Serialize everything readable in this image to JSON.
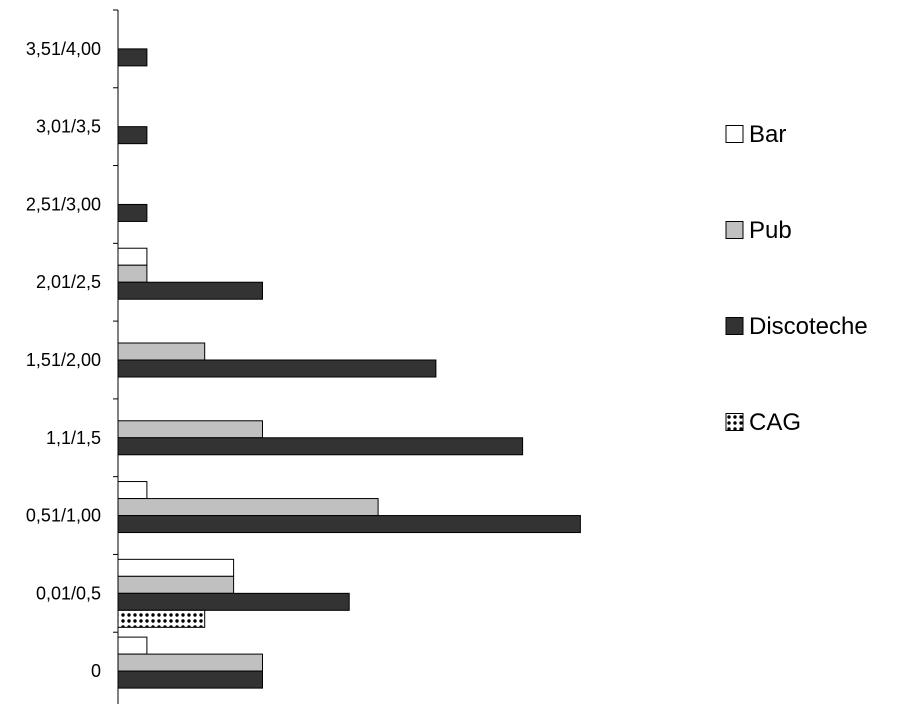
{
  "chart_data": {
    "type": "bar",
    "orientation": "horizontal",
    "categories": [
      "0",
      "0,01/0,5",
      "0,51/1,00",
      "1,1/1,5",
      "1,51/2,00",
      "2,01/2,5",
      "2,51/3,00",
      "3,01/3,5",
      "3,51/4,00"
    ],
    "series": [
      {
        "name": "Bar",
        "values": [
          1,
          4,
          1,
          0,
          0,
          1,
          0,
          0,
          0
        ],
        "color": "#ffffff",
        "pattern": "none"
      },
      {
        "name": "Pub",
        "values": [
          5,
          4,
          9,
          5,
          3,
          1,
          0,
          0,
          0
        ],
        "color": "#c0c0c0",
        "pattern": "none"
      },
      {
        "name": "Discoteche",
        "values": [
          5,
          8,
          16,
          14,
          11,
          5,
          1,
          1,
          1
        ],
        "color": "#333333",
        "pattern": "none"
      },
      {
        "name": "CAG",
        "values": [
          0,
          3,
          0,
          0,
          0,
          0,
          0,
          0,
          0
        ],
        "color": "#ffffff",
        "pattern": "dots"
      }
    ],
    "xlim": [
      0,
      16
    ],
    "grid": false,
    "legend_position": "right",
    "x_axis_visible": false
  }
}
